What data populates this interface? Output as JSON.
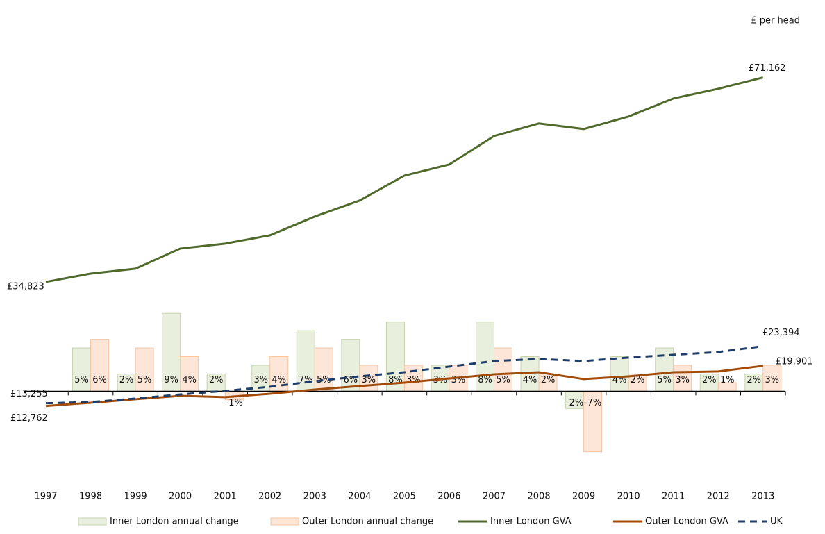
{
  "chart_data": {
    "type": "combo",
    "ylabel": "£ per head",
    "categories": [
      "1997",
      "1998",
      "1999",
      "2000",
      "2001",
      "2002",
      "2003",
      "2004",
      "2005",
      "2006",
      "2007",
      "2008",
      "2009",
      "2010",
      "2011",
      "2012",
      "2013"
    ],
    "ylim": [
      0,
      80000
    ],
    "y2lim": [
      -10,
      42
    ],
    "series": [
      {
        "name": "Inner London annual change",
        "type": "bar",
        "axis": "y2",
        "color": "#e9efdd",
        "stroke": "#c5d3ab",
        "values": [
          null,
          5,
          2,
          9,
          2,
          3,
          7,
          6,
          8,
          3,
          8,
          4,
          -2,
          4,
          5,
          2,
          2
        ],
        "value_labels": [
          null,
          "5%",
          "2%",
          "9%",
          "2%",
          "3%",
          "7%",
          "6%",
          "8%",
          "3%",
          "8%",
          "4%",
          "-2%",
          "4%",
          "5%",
          "2%",
          "2%"
        ]
      },
      {
        "name": "Outer London annual change",
        "type": "bar",
        "axis": "y2",
        "color": "#fde6d7",
        "stroke": "#f5c6a6",
        "values": [
          null,
          6,
          5,
          4,
          -1,
          4,
          5,
          3,
          3,
          3,
          5,
          2,
          -7,
          2,
          3,
          1,
          3
        ],
        "value_labels": [
          null,
          "6%",
          "5%",
          "4%",
          "-1%",
          "4%",
          "5%",
          "3%",
          "3%",
          "3%",
          "5%",
          "2%",
          "-7%",
          "2%",
          "3%",
          "1%",
          "3%"
        ]
      },
      {
        "name": "Inner London GVA",
        "type": "line",
        "color": "#4f6a2b",
        "dash": false,
        "values": [
          34823,
          36300,
          37170,
          40750,
          41620,
          43100,
          46440,
          49280,
          53720,
          55700,
          60760,
          62990,
          62000,
          64220,
          67430,
          69160,
          71162
        ],
        "value_labels": [
          "£34,823",
          null,
          null,
          null,
          null,
          null,
          null,
          null,
          null,
          null,
          null,
          null,
          null,
          null,
          null,
          null,
          "£71,162"
        ]
      },
      {
        "name": "Outer London GVA",
        "type": "line",
        "color": "#a24c0c",
        "dash": false,
        "values": [
          12762,
          13340,
          13960,
          14570,
          14330,
          14940,
          15680,
          16300,
          16920,
          17660,
          18400,
          18770,
          17540,
          18030,
          18770,
          18900,
          19901
        ],
        "value_labels": [
          "£12,762",
          null,
          null,
          null,
          null,
          null,
          null,
          null,
          null,
          null,
          null,
          null,
          null,
          null,
          null,
          null,
          "£19,901"
        ]
      },
      {
        "name": "UK",
        "type": "line",
        "color": "#1f3d69",
        "dash": true,
        "values": [
          13255,
          13460,
          14080,
          14820,
          15440,
          16180,
          17170,
          18030,
          18770,
          19760,
          20750,
          21120,
          20750,
          21370,
          21860,
          22350,
          23394
        ],
        "value_labels": [
          "£13,255",
          null,
          null,
          null,
          null,
          null,
          null,
          null,
          null,
          null,
          null,
          null,
          null,
          null,
          null,
          null,
          "£23,394"
        ]
      }
    ]
  }
}
